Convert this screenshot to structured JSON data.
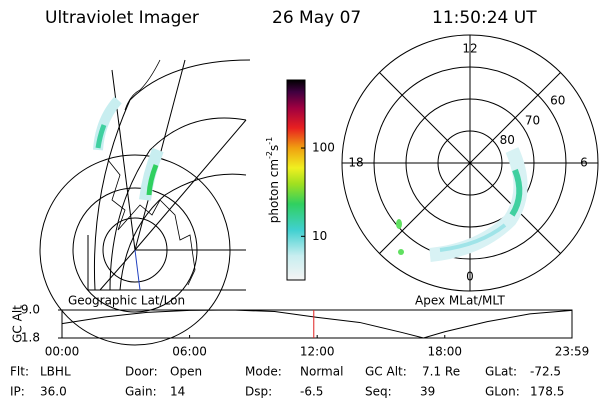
{
  "header": {
    "instrument": "Ultraviolet Imager",
    "date": "26 May 07",
    "time": "11:50:24 UT"
  },
  "left_panel": {
    "label": "Geographic Lat/Lon"
  },
  "colorbar": {
    "unit": "photon cm",
    "exp1": "-2",
    "unit2": "s",
    "exp2": "-1",
    "range": [
      3.2,
      590
    ],
    "log": true,
    "ticks": [
      10,
      100
    ]
  },
  "polar": {
    "label": "Apex MLat/MLT",
    "mlt_labels": [
      12,
      18,
      6,
      0
    ],
    "lat_rings": [
      60,
      70,
      80
    ],
    "lat_edge": 50
  },
  "altitude": {
    "ylabel": "GC Alt",
    "ylim": [
      1.8,
      9.0
    ],
    "yticks": [
      1.8,
      {
        "value": 9.0,
        "label": "9.0"
      }
    ],
    "xlim": [
      0,
      23.983
    ],
    "xticks": [
      {
        "value": 0,
        "label": "00:00"
      },
      {
        "value": 6,
        "label": "06:00"
      },
      {
        "value": 12,
        "label": "12:00"
      },
      {
        "value": 18,
        "label": "18:00"
      },
      {
        "value": 23.983,
        "label": "23:59"
      }
    ],
    "x": [
      0,
      2,
      4,
      6,
      8,
      10,
      12,
      14,
      16,
      17,
      18,
      20,
      22,
      23.983
    ],
    "values": [
      5.5,
      7.2,
      8.4,
      8.9,
      9.0,
      8.6,
      7.1,
      5.8,
      3.2,
      1.8,
      3.4,
      6.0,
      8.0,
      8.9
    ],
    "current_x": 11.84
  },
  "footer": [
    [
      {
        "label": "Flt:",
        "value": "LBHL"
      },
      {
        "label": "Door:",
        "value": "Open"
      },
      {
        "label": "Mode:",
        "value": "Normal"
      },
      {
        "label": "GC Alt:",
        "value": "7.1 Re"
      },
      {
        "label": "GLat:",
        "value": "-72.5"
      }
    ],
    [
      {
        "label": "IP:",
        "value": "36.0"
      },
      {
        "label": "Gain:",
        "value": "14"
      },
      {
        "label": "Dsp:",
        "value": "-6.5"
      },
      {
        "label": "Seq:",
        "value": "39"
      },
      {
        "label": "GLon:",
        "value": "178.5"
      }
    ]
  ]
}
